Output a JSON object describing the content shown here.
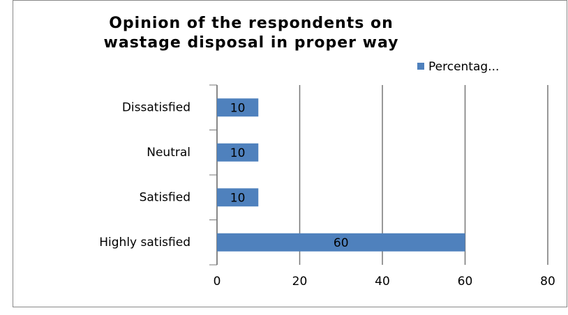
{
  "chart_data": {
    "type": "barh",
    "title": "Opinion of the respondents on wastage disposal in proper way",
    "categories": [
      "Dissatisfied",
      "Neutral",
      "Satisfied",
      "Highly satisfied"
    ],
    "series": [
      {
        "name": "Percentag...",
        "color": "#4f81bd",
        "values": [
          10,
          10,
          10,
          60
        ]
      }
    ],
    "xlim": [
      0,
      80
    ],
    "xticks": [
      0,
      20,
      40,
      60,
      80
    ],
    "grid": true,
    "legend": "top-right"
  }
}
